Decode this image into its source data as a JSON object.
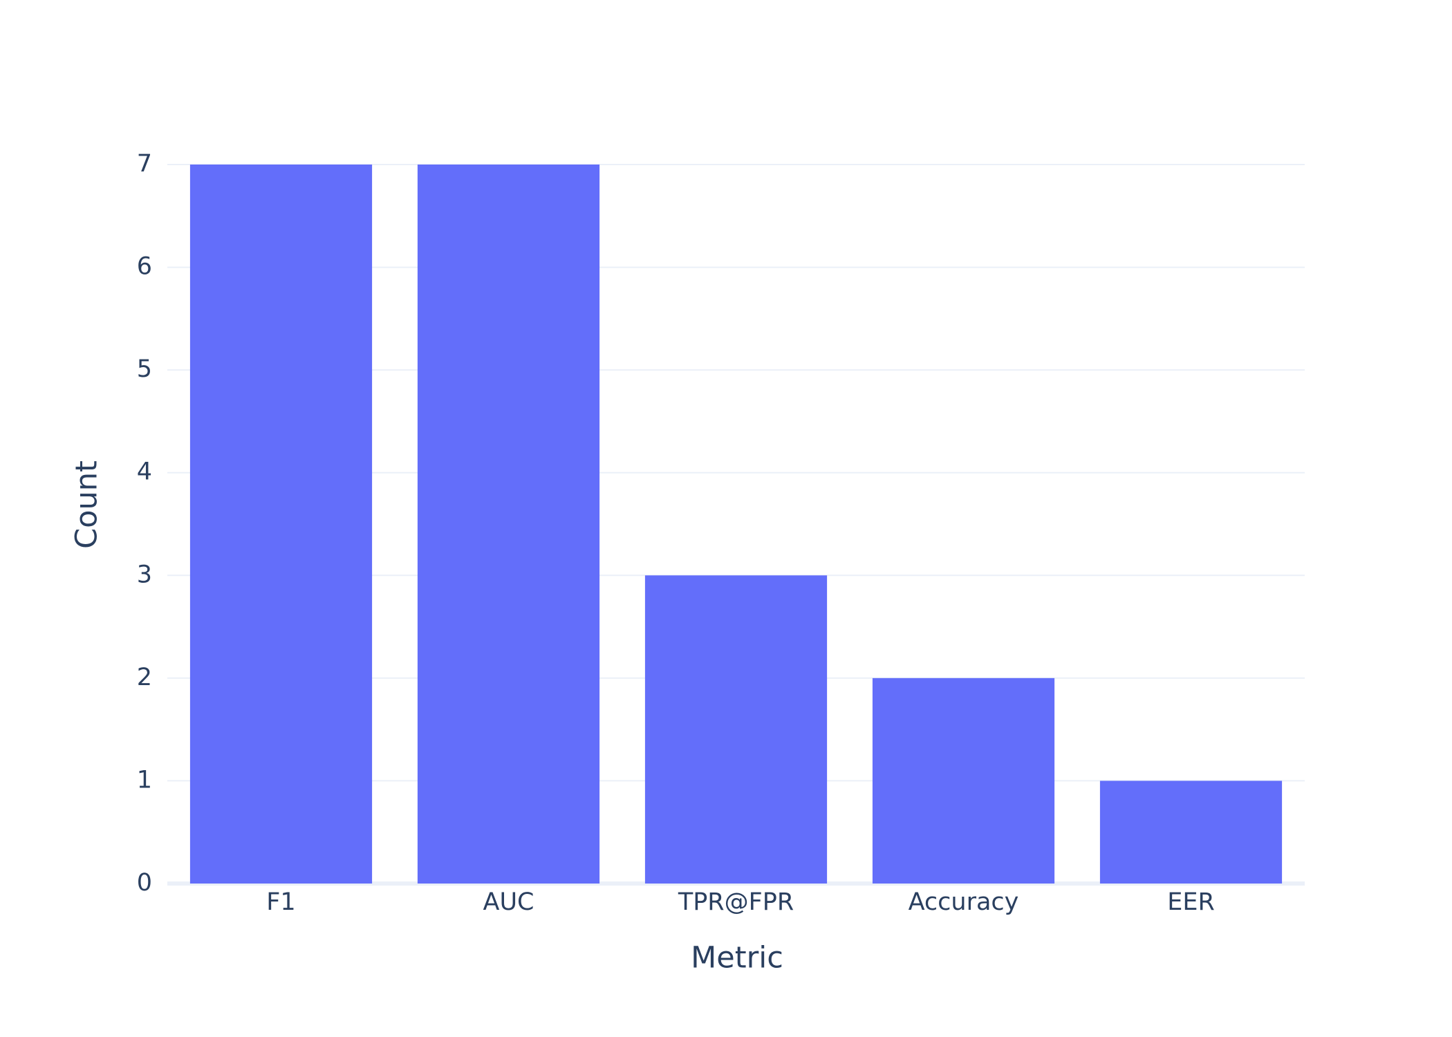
{
  "chart_data": {
    "type": "bar",
    "x_label": "Metric",
    "y_label": "Count",
    "categories": [
      "F1",
      "AUC",
      "TPR@FPR",
      "Accuracy",
      "EER"
    ],
    "values": [
      7,
      7,
      3,
      2,
      1
    ],
    "color": "#636efa",
    "ylim": [
      0,
      7
    ],
    "yticks": [
      0,
      1,
      2,
      3,
      4,
      5,
      6,
      7
    ],
    "grid": true
  }
}
